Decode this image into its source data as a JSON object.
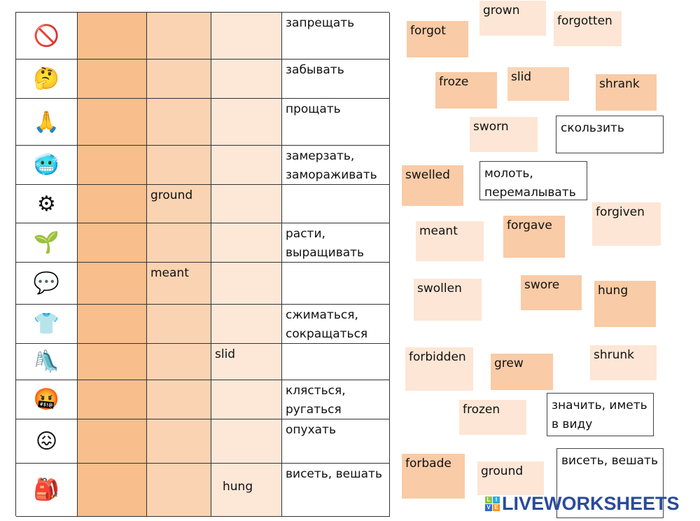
{
  "table": {
    "rows": [
      {
        "picture": "no-rollerblades-icon",
        "col2": "",
        "col3": "",
        "col4": "",
        "translation": "запрещать"
      },
      {
        "picture": "confused-man-icon",
        "col2": "",
        "col3": "",
        "col4": "",
        "translation": "забывать"
      },
      {
        "picture": "apologizing-people-icon",
        "col2": "",
        "col3": "",
        "col4": "",
        "translation": "прощать"
      },
      {
        "picture": "frozen-viking-icon",
        "col2": "",
        "col3": "",
        "col4": "",
        "translation": "замерзать, замораживать"
      },
      {
        "picture": "grinder-icon",
        "col2": "",
        "col3": "ground",
        "col4": "",
        "translation": ""
      },
      {
        "picture": "sprout-in-hand-icon",
        "col2": "",
        "col3": "",
        "col4": "",
        "translation": "расти, выращивать"
      },
      {
        "picture": "talking-people-icon",
        "col2": "",
        "col3": "meant",
        "col4": "",
        "translation": ""
      },
      {
        "picture": "shrunk-clothes-icon",
        "col2": "",
        "col3": "",
        "col4": "",
        "translation": "сжиматься, сокращаться"
      },
      {
        "picture": "slide-icon",
        "col2": "",
        "col3": "",
        "col4": "slid",
        "translation": ""
      },
      {
        "picture": "swearing-mouth-icon",
        "col2": "",
        "col3": "",
        "col4": "",
        "translation": "клясться, ругаться"
      },
      {
        "picture": "swollen-face-icon",
        "col2": "",
        "col3": "",
        "col4": "",
        "translation": "опухать"
      },
      {
        "picture": "hanging-bag-icon",
        "col2": "",
        "col3": "",
        "col4": "hung",
        "translation": "висеть, вешать"
      }
    ]
  },
  "tiles": [
    {
      "text": "grown",
      "shade": "light"
    },
    {
      "text": "forgot",
      "shade": "dark"
    },
    {
      "text": "forgotten",
      "shade": "light"
    },
    {
      "text": "froze",
      "shade": "dark"
    },
    {
      "text": "slid",
      "shade": "med"
    },
    {
      "text": "shrank",
      "shade": "dark"
    },
    {
      "text": "sworn",
      "shade": "light"
    },
    {
      "text": "скользить",
      "shade": "outline"
    },
    {
      "text": "swelled",
      "shade": "dark"
    },
    {
      "text": "молоть, перемалывать",
      "shade": "outline"
    },
    {
      "text": "forgiven",
      "shade": "light"
    },
    {
      "text": "meant",
      "shade": "light"
    },
    {
      "text": "forgave",
      "shade": "dark"
    },
    {
      "text": "swollen",
      "shade": "light"
    },
    {
      "text": "swore",
      "shade": "dark"
    },
    {
      "text": "hung",
      "shade": "dark"
    },
    {
      "text": "forbidden",
      "shade": "light"
    },
    {
      "text": "grew",
      "shade": "dark"
    },
    {
      "text": "shrunk",
      "shade": "light"
    },
    {
      "text": "frozen",
      "shade": "light"
    },
    {
      "text": "значить, иметь в виду",
      "shade": "outline"
    },
    {
      "text": "forbade",
      "shade": "dark"
    },
    {
      "text": "ground",
      "shade": "light"
    },
    {
      "text": "висеть, вешать",
      "shade": "outline"
    }
  ],
  "colors": {
    "col2": "#f8be8c",
    "col3": "#fad3b2",
    "col4": "#fde8d8",
    "logo": "#2a4b9b"
  },
  "logo": {
    "text": "LIVEWORKSHEETS",
    "badge": [
      "L",
      "I",
      "V",
      "E"
    ]
  }
}
